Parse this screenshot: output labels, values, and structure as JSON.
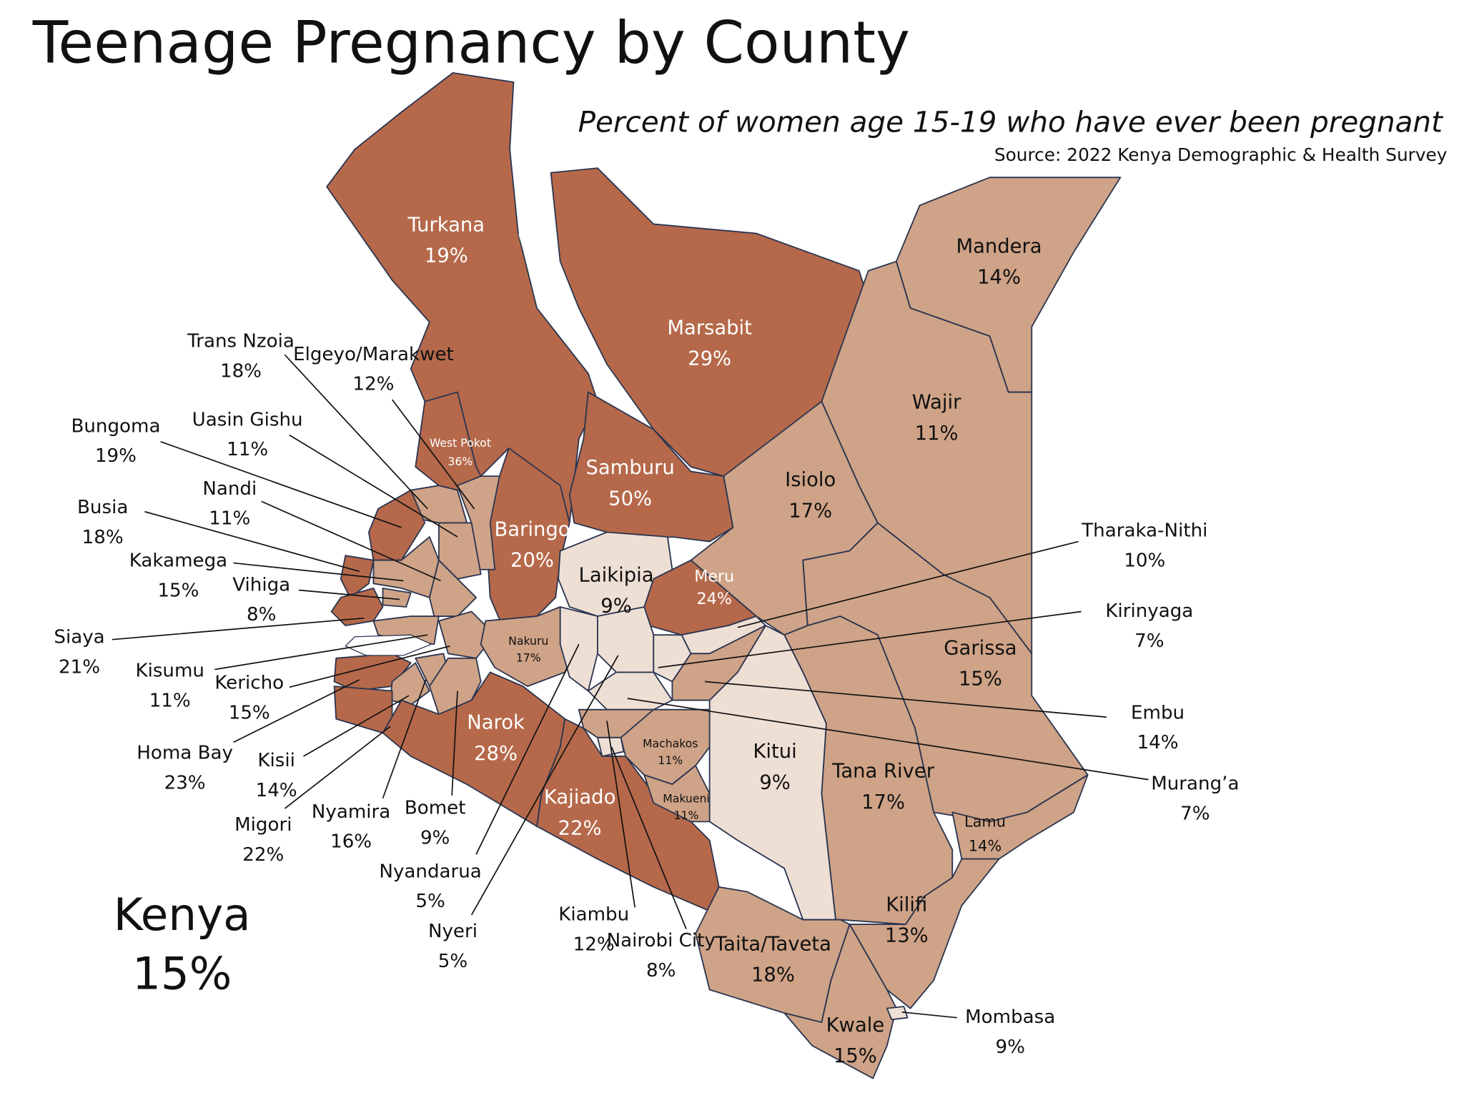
{
  "title": "Teenage Pregnancy by County",
  "subtitle": "Percent of women age 15-19 who have ever been pregnant",
  "source": "Source: 2022 Kenya Demographic & Health Survey",
  "national": {
    "name": "Kenya",
    "value": 15,
    "value_label": "15%"
  },
  "counties": [
    {
      "name": "Turkana",
      "value": 19,
      "value_label": "19%",
      "color": "#b5694a"
    },
    {
      "name": "Marsabit",
      "value": 29,
      "value_label": "29%",
      "color": "#b5694a"
    },
    {
      "name": "Mandera",
      "value": 14,
      "value_label": "14%",
      "color": "#cfa387"
    },
    {
      "name": "Wajir",
      "value": 11,
      "value_label": "11%",
      "color": "#cfa387"
    },
    {
      "name": "Isiolo",
      "value": 17,
      "value_label": "17%",
      "color": "#cfa387"
    },
    {
      "name": "Garissa",
      "value": 15,
      "value_label": "15%",
      "color": "#cfa387"
    },
    {
      "name": "Tana River",
      "value": 17,
      "value_label": "17%",
      "color": "#cfa387"
    },
    {
      "name": "Kitui",
      "value": 9,
      "value_label": "9%",
      "color": "#eedfd5"
    },
    {
      "name": "Samburu",
      "value": 50,
      "value_label": "50%",
      "color": "#b5694a"
    },
    {
      "name": "Baringo",
      "value": 20,
      "value_label": "20%",
      "color": "#b5694a"
    },
    {
      "name": "West Pokot",
      "value": 36,
      "value_label": "36%",
      "color": "#b5694a"
    },
    {
      "name": "Elgeyo/Marakwet",
      "value": 12,
      "value_label": "12%",
      "color": "#cfa387"
    },
    {
      "name": "Trans Nzoia",
      "value": 18,
      "value_label": "18%",
      "color": "#cfa387"
    },
    {
      "name": "Uasin Gishu",
      "value": 11,
      "value_label": "11%",
      "color": "#cfa387"
    },
    {
      "name": "Bungoma",
      "value": 19,
      "value_label": "19%",
      "color": "#b5694a"
    },
    {
      "name": "Busia",
      "value": 18,
      "value_label": "18%",
      "color": "#b5694a"
    },
    {
      "name": "Kakamega",
      "value": 15,
      "value_label": "15%",
      "color": "#cfa387"
    },
    {
      "name": "Vihiga",
      "value": 8,
      "value_label": "8%",
      "color": "#cfa387"
    },
    {
      "name": "Nandi",
      "value": 11,
      "value_label": "11%",
      "color": "#cfa387"
    },
    {
      "name": "Siaya",
      "value": 21,
      "value_label": "21%",
      "color": "#b5694a"
    },
    {
      "name": "Kisumu",
      "value": 11,
      "value_label": "11%",
      "color": "#cfa387"
    },
    {
      "name": "Kericho",
      "value": 15,
      "value_label": "15%",
      "color": "#cfa387"
    },
    {
      "name": "Homa Bay",
      "value": 23,
      "value_label": "23%",
      "color": "#b5694a"
    },
    {
      "name": "Kisii",
      "value": 14,
      "value_label": "14%",
      "color": "#cfa387"
    },
    {
      "name": "Nyamira",
      "value": 16,
      "value_label": "16%",
      "color": "#cfa387"
    },
    {
      "name": "Migori",
      "value": 22,
      "value_label": "22%",
      "color": "#b5694a"
    },
    {
      "name": "Bomet",
      "value": 9,
      "value_label": "9%",
      "color": "#cfa387"
    },
    {
      "name": "Narok",
      "value": 28,
      "value_label": "28%",
      "color": "#b5694a"
    },
    {
      "name": "Nakuru",
      "value": 17,
      "value_label": "17%",
      "color": "#cfa387"
    },
    {
      "name": "Laikipia",
      "value": 9,
      "value_label": "9%",
      "color": "#eedfd5"
    },
    {
      "name": "Meru",
      "value": 24,
      "value_label": "24%",
      "color": "#b5694a"
    },
    {
      "name": "Nyandarua",
      "value": 5,
      "value_label": "5%",
      "color": "#eedfd5"
    },
    {
      "name": "Nyeri",
      "value": 5,
      "value_label": "5%",
      "color": "#eedfd5"
    },
    {
      "name": "Tharaka-Nithi",
      "value": 10,
      "value_label": "10%",
      "color": "#eedfd5"
    },
    {
      "name": "Kirinyaga",
      "value": 7,
      "value_label": "7%",
      "color": "#eedfd5"
    },
    {
      "name": "Embu",
      "value": 14,
      "value_label": "14%",
      "color": "#cfa387"
    },
    {
      "name": "Murang’a",
      "value": 7,
      "value_label": "7%",
      "color": "#eedfd5"
    },
    {
      "name": "Kiambu",
      "value": 12,
      "value_label": "12%",
      "color": "#cfa387"
    },
    {
      "name": "Nairobi City",
      "value": 8,
      "value_label": "8%",
      "color": "#eedfd5"
    },
    {
      "name": "Kajiado",
      "value": 22,
      "value_label": "22%",
      "color": "#b5694a"
    },
    {
      "name": "Machakos",
      "value": 11,
      "value_label": "11%",
      "color": "#cfa387"
    },
    {
      "name": "Makueni",
      "value": 11,
      "value_label": "11%",
      "color": "#cfa387"
    },
    {
      "name": "Lamu",
      "value": 14,
      "value_label": "14%",
      "color": "#cfa387"
    },
    {
      "name": "Kilifi",
      "value": 13,
      "value_label": "13%",
      "color": "#cfa387"
    },
    {
      "name": "Taita/Taveta",
      "value": 18,
      "value_label": "18%",
      "color": "#cfa387"
    },
    {
      "name": "Kwale",
      "value": 15,
      "value_label": "15%",
      "color": "#cfa387"
    },
    {
      "name": "Mombasa",
      "value": 9,
      "value_label": "9%",
      "color": "#eedfd5"
    }
  ]
}
